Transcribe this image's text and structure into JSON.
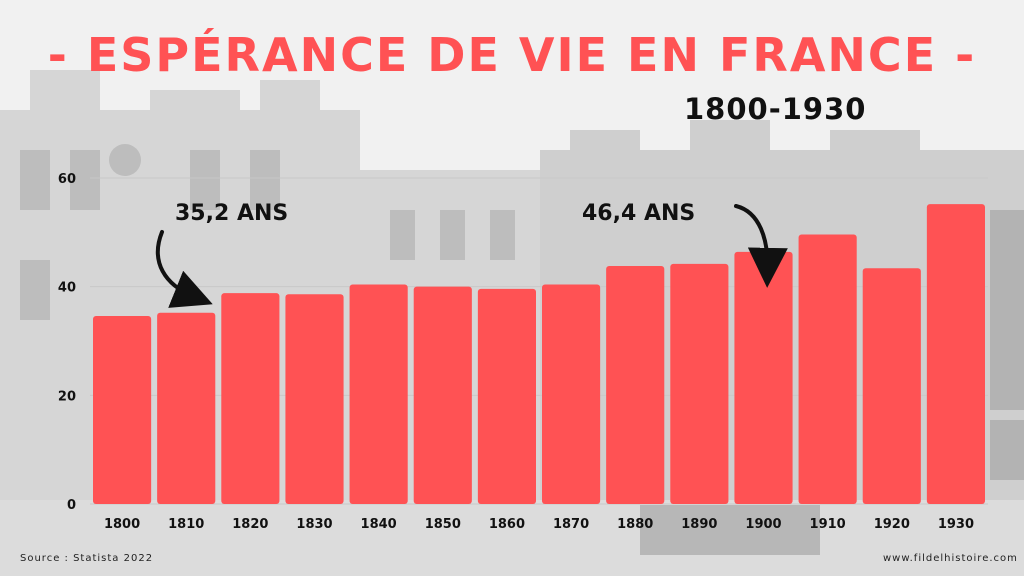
{
  "title": "- ESPÉRANCE DE VIE EN FRANCE -",
  "subtitle": "1800-1930",
  "source": "Source : Statista 2022",
  "website": "www.fildelhistoire.com",
  "colors": {
    "bar": "#ff5254",
    "title": "#ff5254",
    "text": "#111111"
  },
  "chart_data": {
    "type": "bar",
    "categories": [
      "1800",
      "1810",
      "1820",
      "1830",
      "1840",
      "1850",
      "1860",
      "1870",
      "1880",
      "1890",
      "1900",
      "1910",
      "1920",
      "1930"
    ],
    "values": [
      34.6,
      35.2,
      38.8,
      38.6,
      40.4,
      40.0,
      39.6,
      40.4,
      43.8,
      44.2,
      46.4,
      49.6,
      43.4,
      55.2
    ],
    "yticks": [
      0,
      20,
      40,
      60
    ],
    "ylim": [
      0,
      60
    ],
    "grid": true,
    "annotations": [
      {
        "text": "35,2 ANS",
        "category": "1810"
      },
      {
        "text": "46,4 ANS",
        "category": "1900"
      }
    ]
  }
}
